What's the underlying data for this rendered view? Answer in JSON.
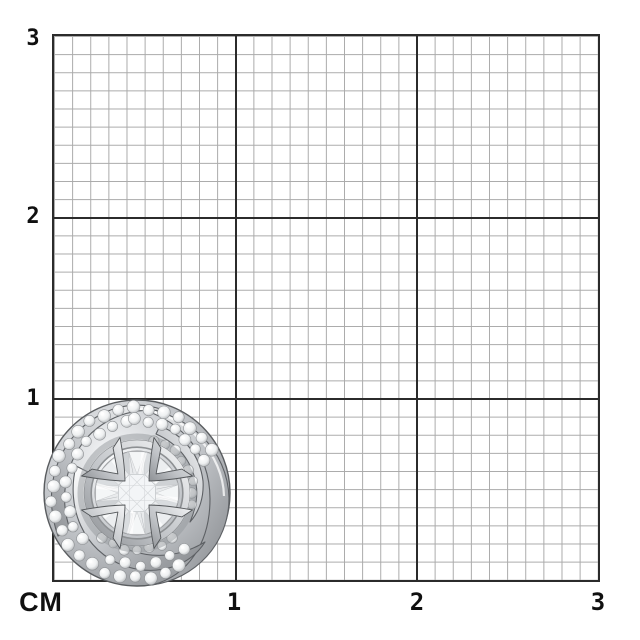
{
  "page": {
    "background": "#ffffff"
  },
  "grid": {
    "unit_label": "СМ",
    "y_axis_ticks": [
      "3",
      "2",
      "1"
    ],
    "x_axis_ticks": [
      "1",
      "2",
      "3"
    ],
    "major_step_cm": 1,
    "minor_step_mm": 1,
    "colors": {
      "minor_line": "#aaaaaa",
      "major_line": "#2b2b2b",
      "label": "#101010",
      "background": "#ffffff"
    }
  },
  "object": {
    "type": "product-photo",
    "description": "Polished silver love-knot swirl stud with a round brilliant center stone held by four claw prongs and pave-set accent stones spiraling around it; shown on a centimeter grid, spanning roughly 1 cm.",
    "approx_width_cm": 1.0,
    "approx_height_cm": 1.0,
    "colors": {
      "metal_light": "#fafbfc",
      "metal_mid": "#c6c9cd",
      "metal_dark": "#84878b",
      "outline": "#54575a",
      "stone": "#f3f5f6",
      "pave_stroke": "#8f9295"
    }
  }
}
